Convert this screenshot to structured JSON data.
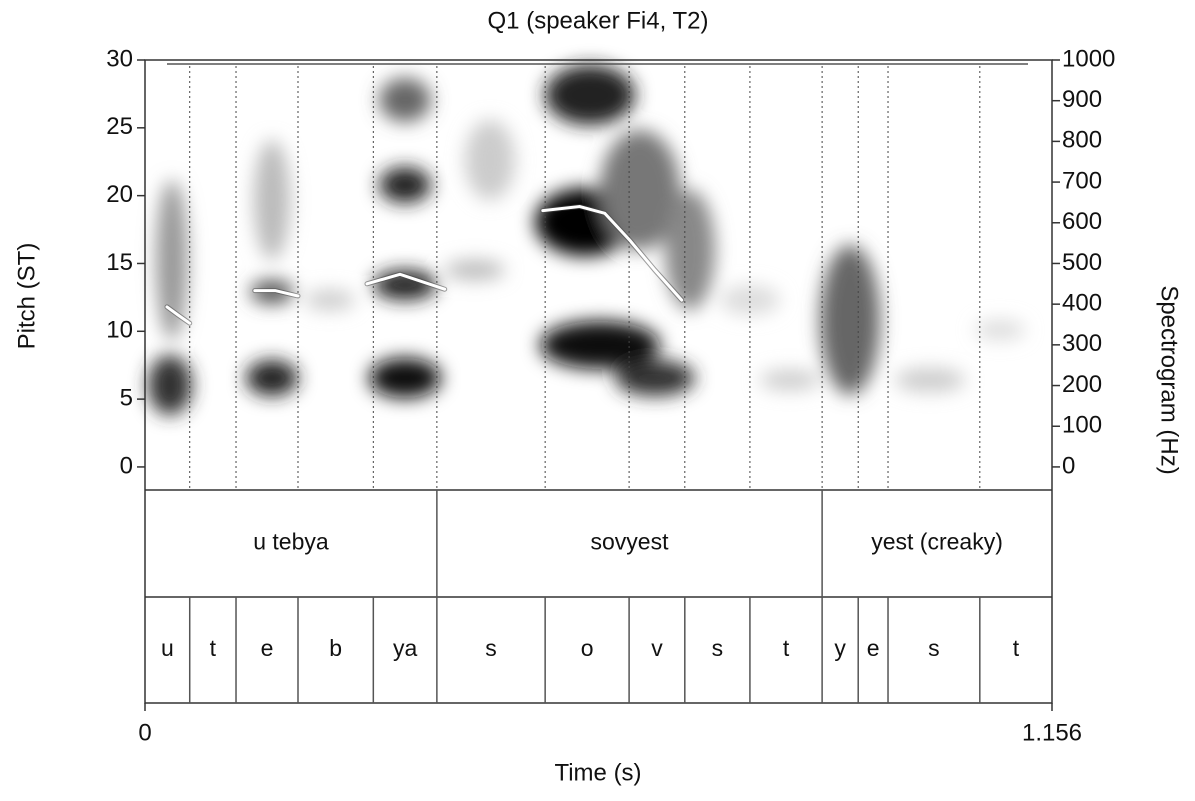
{
  "chart_data": {
    "type": "line",
    "title": "Q1 (speaker Fi4, T2)",
    "ylabel": "Pitch (ST)",
    "y2label": "Spectrogram (Hz)",
    "xlabel": "Time (s)",
    "xlim": [
      0,
      1.156
    ],
    "xticks": [
      0,
      1.156
    ],
    "ylim": [
      -1.7,
      30
    ],
    "yticks": [
      0,
      5,
      10,
      15,
      20,
      25,
      30
    ],
    "y2lim": [
      -56.7,
      1000
    ],
    "y2ticks": [
      0,
      100,
      200,
      300,
      400,
      500,
      600,
      700,
      800,
      900,
      1000
    ],
    "x": [
      0.028,
      0.042,
      0.057,
      null,
      0.14,
      0.166,
      0.195,
      null,
      0.283,
      0.325,
      0.382,
      null,
      0.507,
      0.554,
      0.586,
      0.618,
      0.65,
      0.684
    ],
    "values": [
      11.8,
      11.2,
      10.6,
      null,
      13.0,
      13.0,
      12.6,
      null,
      13.5,
      14.2,
      13.1,
      null,
      18.9,
      19.2,
      18.7,
      16.7,
      14.5,
      12.3
    ],
    "color": "#ffffff",
    "tiers": [
      {
        "boundaries": [
          0,
          0.372,
          0.863,
          1.156
        ],
        "labels": [
          "u tebya",
          "sovyest",
          "yest (creaky)"
        ]
      },
      {
        "boundaries": [
          0,
          0.057,
          0.116,
          0.195,
          0.291,
          0.372,
          0.51,
          0.617,
          0.688,
          0.771,
          0.863,
          0.909,
          0.947,
          1.064,
          1.156
        ],
        "labels": [
          "u",
          "t",
          "e",
          "b",
          "ya",
          "s",
          "o",
          "v",
          "s",
          "t",
          "y",
          "e",
          "s",
          "t"
        ]
      }
    ]
  }
}
